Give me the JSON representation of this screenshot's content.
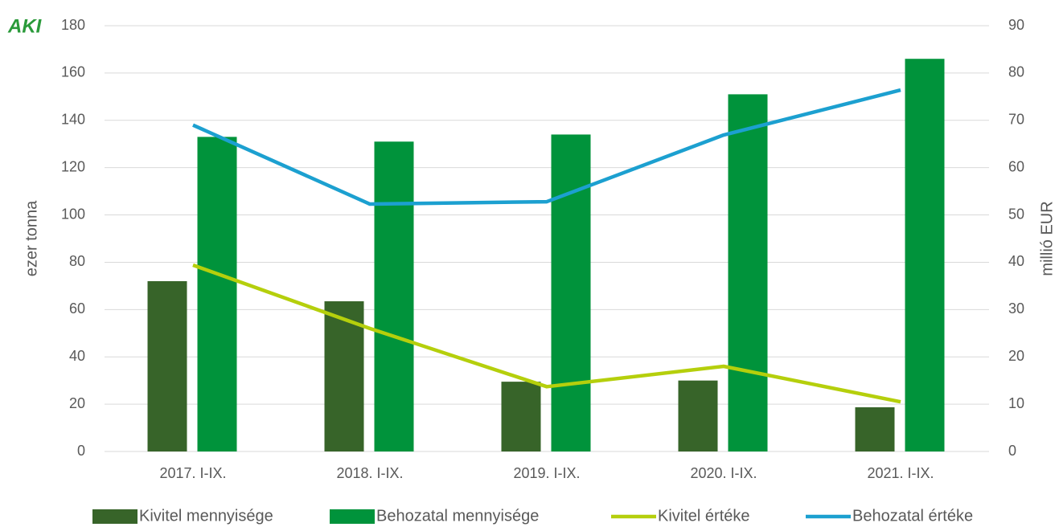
{
  "logo": "AKI",
  "chart_data": {
    "type": "bar-line",
    "ylabel": "ezer tonna",
    "y2label": "millió EUR",
    "categories": [
      "2017. I-IX.",
      "2018. I-IX.",
      "2019. I-IX.",
      "2020. I-IX.",
      "2021. I-IX."
    ],
    "ylim": [
      0,
      180
    ],
    "yticks": [
      0,
      20,
      40,
      60,
      80,
      100,
      120,
      140,
      160,
      180
    ],
    "y2lim": [
      0,
      90
    ],
    "y2ticks": [
      0,
      10,
      20,
      30,
      40,
      50,
      60,
      70,
      80,
      90
    ],
    "grid": true,
    "legend": "bottom",
    "series": [
      {
        "name": "Kivitel mennyisége",
        "kind": "bar",
        "color": "#376429",
        "values": [
          72,
          63.5,
          29.5,
          30,
          18.7
        ]
      },
      {
        "name": "Behozatal mennyisége",
        "kind": "bar",
        "color": "#00933b",
        "values": [
          133,
          131,
          134,
          151,
          166
        ]
      },
      {
        "name": "Kivitel értéke",
        "kind": "line",
        "axis": "y2",
        "color": "#b5cf0c",
        "values": [
          39.4,
          26,
          13.7,
          18,
          10.5
        ]
      },
      {
        "name": "Behozatal értéke",
        "kind": "line",
        "axis": "y2",
        "color": "#1ca0d0",
        "values": [
          69,
          52.3,
          52.8,
          66.9,
          76.4
        ]
      }
    ]
  }
}
